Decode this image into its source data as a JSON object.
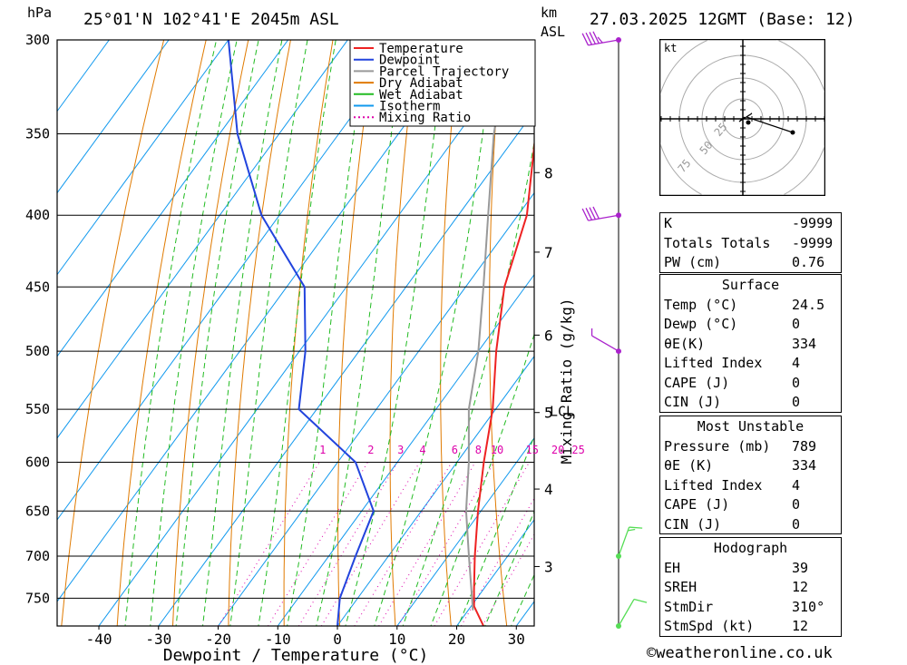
{
  "header": {
    "hpa_label": "hPa",
    "location": "25°01'N 102°41'E 2045m ASL",
    "km_label": "km",
    "asl_label": "ASL",
    "datetime": "27.03.2025 12GMT (Base: 12)"
  },
  "colors": {
    "temperature": "#ee2222",
    "dewpoint": "#2244dd",
    "parcel": "#999999",
    "dry_adiabat": "#e07a00",
    "wet_adiabat": "#22bb22",
    "isotherm": "#1199ee",
    "mixing_ratio": "#dd00aa",
    "wind_barb": "#aa22cc",
    "wind_barb_low": "#55dd55"
  },
  "chart_data": {
    "type": "line",
    "xlabel": "Dewpoint / Temperature (°C)",
    "ylabel": "",
    "pressure_axis": {
      "label": "hPa",
      "ticks": [
        300,
        350,
        400,
        450,
        500,
        550,
        600,
        650,
        700,
        750
      ],
      "range": [
        300,
        785
      ],
      "scale": "log"
    },
    "temperature_axis": {
      "ticks": [
        -40,
        -30,
        -20,
        -10,
        0,
        10,
        20,
        30
      ],
      "range_at_bottom": [
        -47,
        33
      ]
    },
    "km_axis": {
      "label": "km ASL",
      "ticks": [
        {
          "km": "8",
          "p": 373
        },
        {
          "km": "7",
          "p": 425
        },
        {
          "km": "6",
          "p": 487
        },
        {
          "km": "5",
          "p": 553
        },
        {
          "km": "4",
          "p": 627
        },
        {
          "km": "3",
          "p": 712
        }
      ]
    },
    "lcl": {
      "label": "LCL",
      "p": 552
    },
    "mixing_ratio_axis": {
      "label": "Mixing Ratio (g/kg)",
      "values": [
        "1",
        "2",
        "3",
        "4",
        "6",
        "8",
        "10",
        "15",
        "20",
        "25"
      ],
      "label_pressure": 595
    },
    "legend": {
      "placement": "top-right",
      "entries": [
        "Temperature",
        "Dewpoint",
        "Parcel Trajectory",
        "Dry Adiabat",
        "Wet Adiabat",
        "Isotherm",
        "Mixing Ratio"
      ]
    },
    "series": [
      {
        "name": "Temperature",
        "points": [
          {
            "p": 785,
            "t": 24.5
          },
          {
            "p": 760,
            "t": 20.5
          },
          {
            "p": 740,
            "t": 18.5
          },
          {
            "p": 700,
            "t": 14.5
          },
          {
            "p": 650,
            "t": 9.5
          },
          {
            "p": 600,
            "t": 4.5
          },
          {
            "p": 550,
            "t": -0.5
          },
          {
            "p": 500,
            "t": -7
          },
          {
            "p": 450,
            "t": -13.5
          },
          {
            "p": 400,
            "t": -18.5
          },
          {
            "p": 350,
            "t": -27
          }
        ]
      },
      {
        "name": "Dewpoint",
        "points": [
          {
            "p": 785,
            "t": 0
          },
          {
            "p": 750,
            "t": -3
          },
          {
            "p": 700,
            "t": -5.5
          },
          {
            "p": 650,
            "t": -8
          },
          {
            "p": 600,
            "t": -17
          },
          {
            "p": 550,
            "t": -33
          },
          {
            "p": 500,
            "t": -39
          },
          {
            "p": 450,
            "t": -47
          },
          {
            "p": 400,
            "t": -63
          },
          {
            "p": 350,
            "t": -77
          },
          {
            "p": 300,
            "t": -90
          }
        ]
      },
      {
        "name": "Parcel Trajectory",
        "points": [
          {
            "p": 765,
            "t": 20.8
          },
          {
            "p": 700,
            "t": 13.5
          },
          {
            "p": 650,
            "t": 7.5
          },
          {
            "p": 600,
            "t": 2
          },
          {
            "p": 550,
            "t": -4.5
          },
          {
            "p": 500,
            "t": -10
          },
          {
            "p": 450,
            "t": -17
          },
          {
            "p": 400,
            "t": -25
          },
          {
            "p": 350,
            "t": -34
          },
          {
            "p": 310,
            "t": -41
          }
        ]
      }
    ],
    "wind_barbs": [
      {
        "p": 300,
        "dir": 260,
        "spd": 45
      },
      {
        "p": 400,
        "dir": 260,
        "spd": 40
      },
      {
        "p": 500,
        "dir": 300,
        "spd": 5
      },
      {
        "p": 700,
        "dir": 20,
        "spd": 15
      },
      {
        "p": 785,
        "dir": 30,
        "spd": 10
      }
    ],
    "hodograph": {
      "unit_label": "kt",
      "ring_labels": [
        "25",
        "50",
        "75"
      ]
    }
  },
  "indices": {
    "rows": [
      {
        "label": "K",
        "value": "-9999"
      },
      {
        "label": "Totals Totals",
        "value": "-9999"
      },
      {
        "label": "PW (cm)",
        "value": "0.76"
      }
    ]
  },
  "surface": {
    "title": "Surface",
    "rows": [
      {
        "label": "Temp (°C)",
        "value": "24.5"
      },
      {
        "label": "Dewp (°C)",
        "value": "0"
      },
      {
        "label": "θE(K)",
        "value": "334"
      },
      {
        "label": "Lifted Index",
        "value": "4"
      },
      {
        "label": "CAPE (J)",
        "value": "0"
      },
      {
        "label": "CIN (J)",
        "value": "0"
      }
    ]
  },
  "most_unstable": {
    "title": "Most Unstable",
    "rows": [
      {
        "label": "Pressure (mb)",
        "value": "789"
      },
      {
        "label": "θE (K)",
        "value": "334"
      },
      {
        "label": "Lifted Index",
        "value": "4"
      },
      {
        "label": "CAPE (J)",
        "value": "0"
      },
      {
        "label": "CIN (J)",
        "value": "0"
      }
    ]
  },
  "hodograph_table": {
    "title": "Hodograph",
    "rows": [
      {
        "label": "EH",
        "value": "39"
      },
      {
        "label": "SREH",
        "value": "12"
      },
      {
        "label": "StmDir",
        "value": "310°"
      },
      {
        "label": "StmSpd (kt)",
        "value": "12"
      }
    ]
  },
  "footer": {
    "copyright": "©weatheronline.co.uk"
  }
}
